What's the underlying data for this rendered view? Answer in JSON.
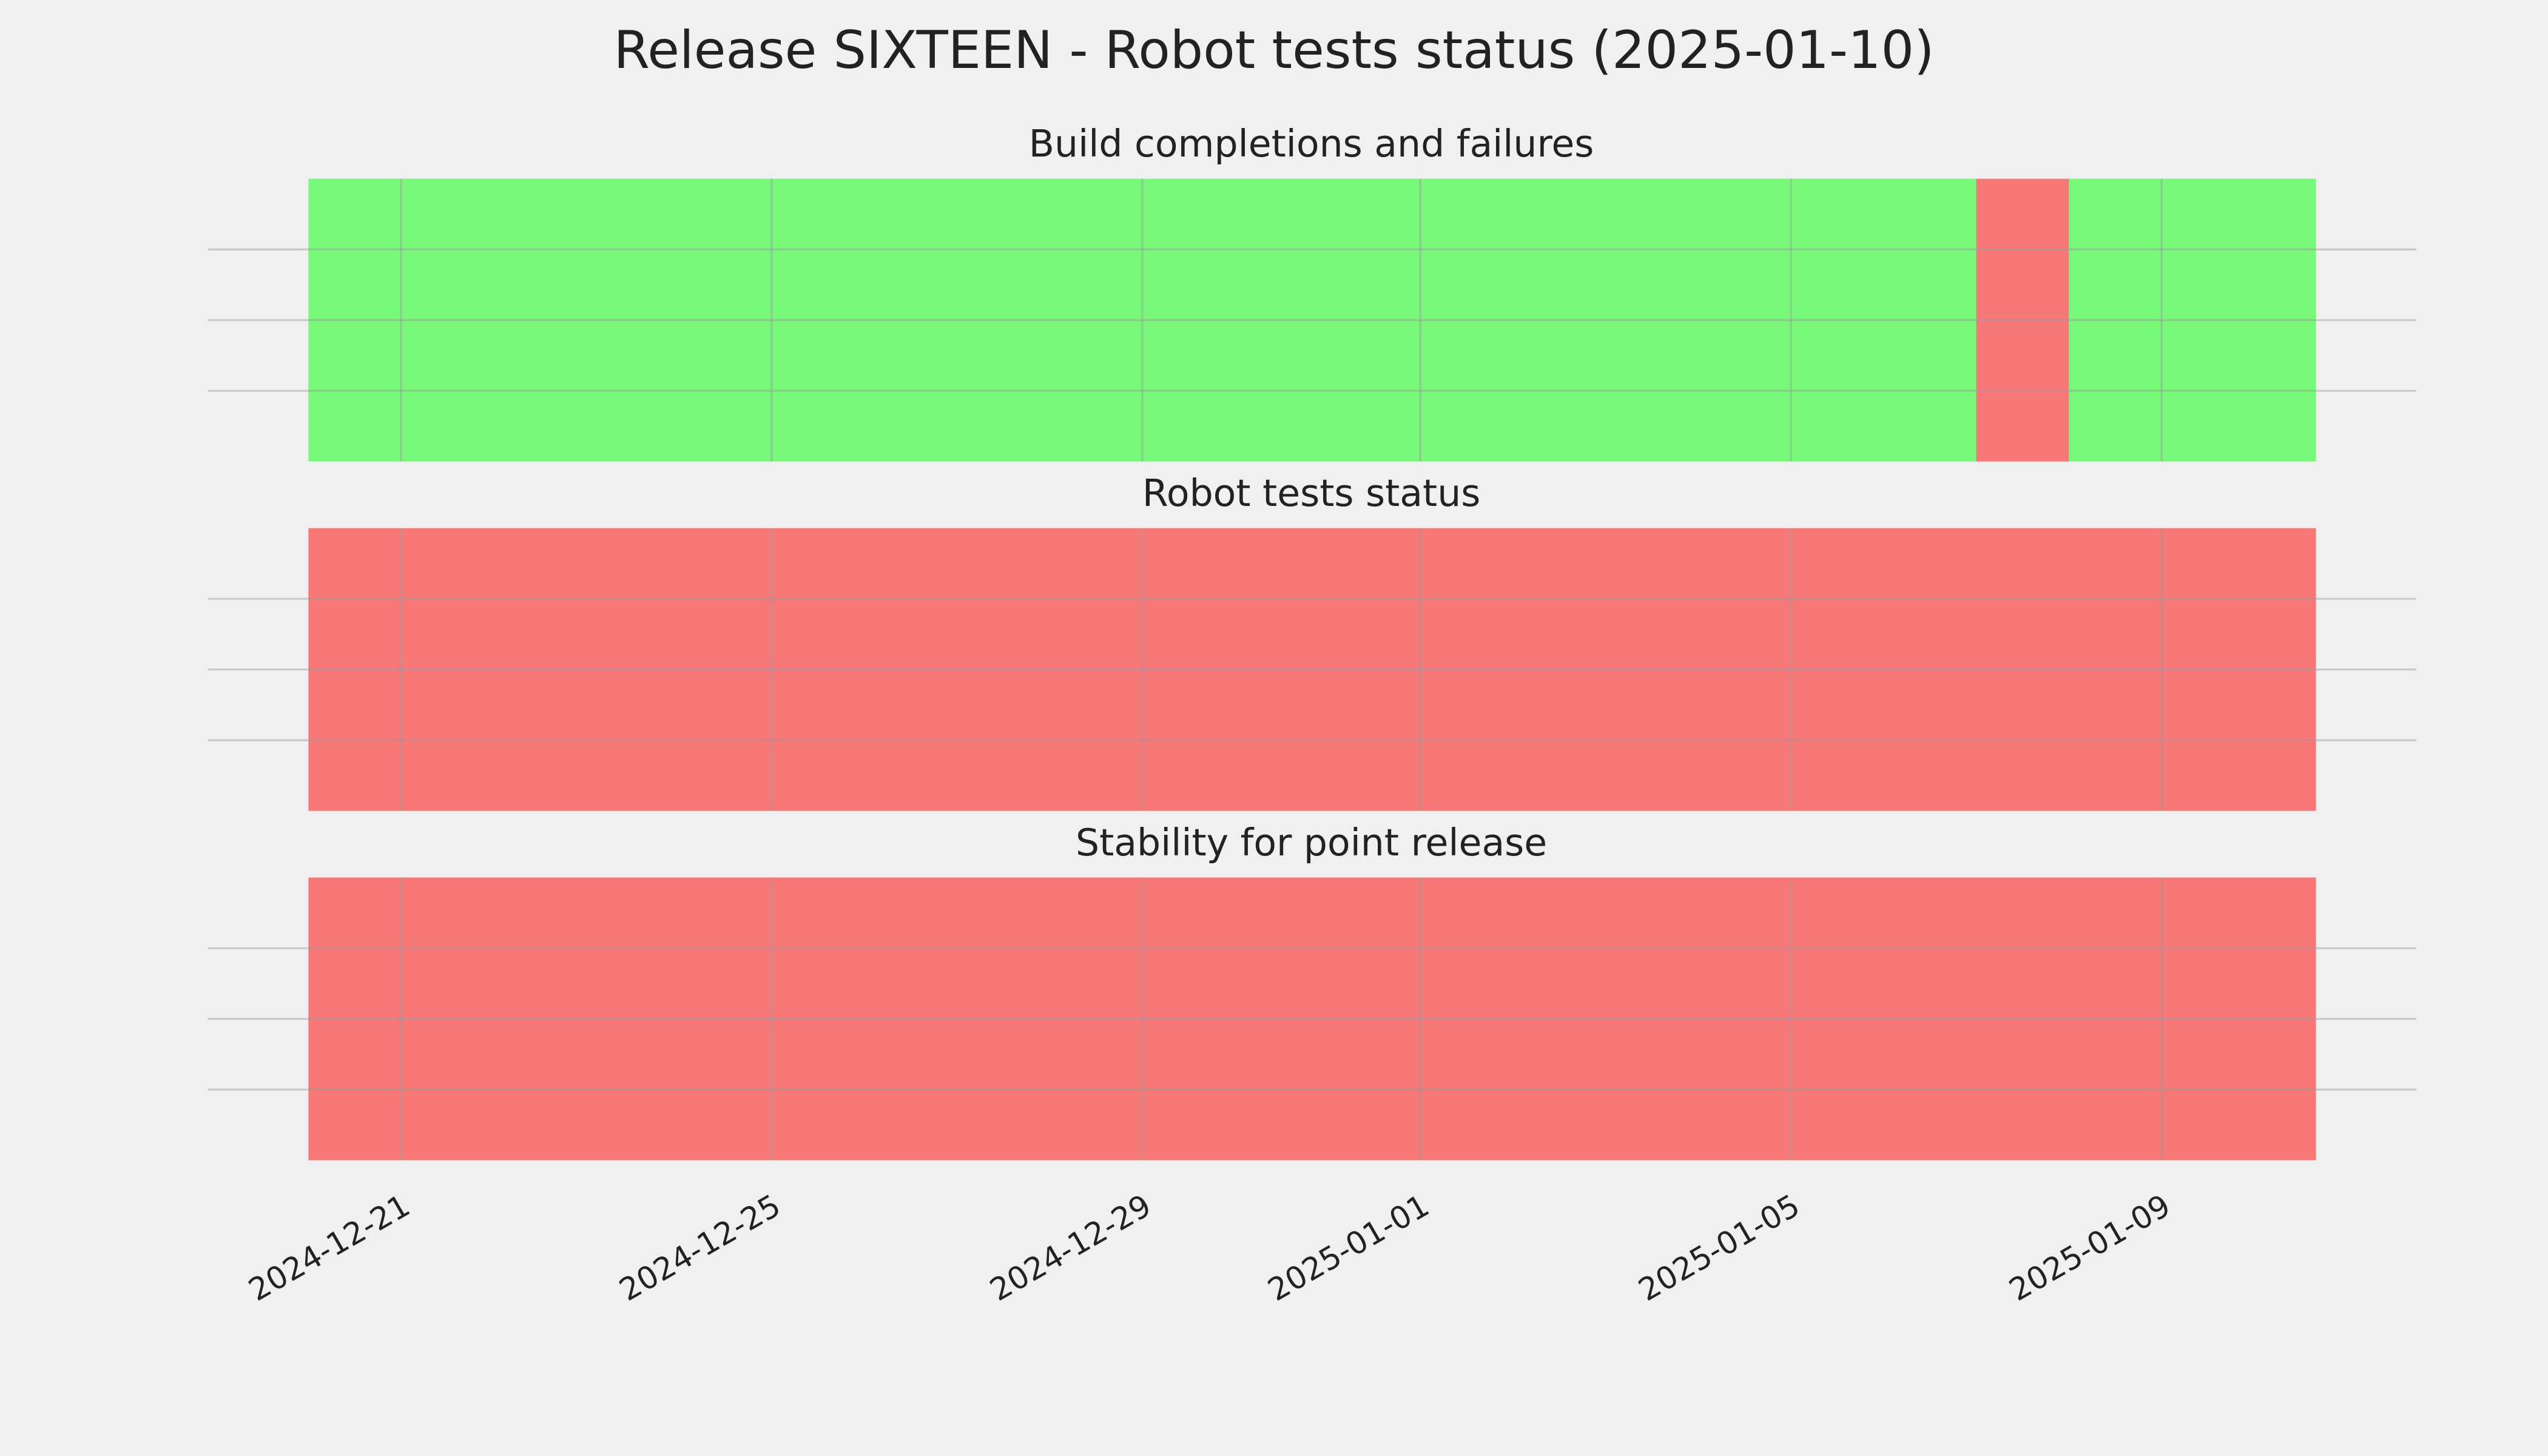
{
  "title": "Release SIXTEEN - Robot tests status (2025-01-10)",
  "chart_data": [
    {
      "type": "timeline",
      "title": "Build completions and failures",
      "x": [
        "2024-12-20",
        "2025-01-07",
        "2025-01-08"
      ],
      "colors": [
        "#00ff00",
        "#ff0000",
        "#00ff00"
      ],
      "xlim": [
        "2024-12-20",
        "2025-01-10T16:00"
      ],
      "xticks": [
        "2024-12-21",
        "2024-12-25",
        "2024-12-29",
        "2025-01-01",
        "2025-01-05",
        "2025-01-09"
      ],
      "ylim": [
        0,
        1
      ],
      "yticks": [
        0.25,
        0.5,
        0.75
      ],
      "grid": true
    },
    {
      "type": "timeline",
      "title": "Robot tests status",
      "x": [
        "2024-12-20"
      ],
      "colors": [
        "#ff0000"
      ],
      "xlim": [
        "2024-12-20",
        "2025-01-10T16:00"
      ],
      "xticks": [
        "2024-12-21",
        "2024-12-25",
        "2024-12-29",
        "2025-01-01",
        "2025-01-05",
        "2025-01-09"
      ],
      "ylim": [
        0,
        1
      ],
      "yticks": [
        0.25,
        0.5,
        0.75
      ],
      "grid": true
    },
    {
      "type": "timeline",
      "title": "Stability for point release",
      "x": [
        "2024-12-20"
      ],
      "colors": [
        "#ff0000"
      ],
      "xlim": [
        "2024-12-20",
        "2025-01-10T16:00"
      ],
      "xticks": [
        "2024-12-21",
        "2024-12-25",
        "2024-12-29",
        "2025-01-01",
        "2025-01-05",
        "2025-01-09"
      ],
      "ylim": [
        0,
        1
      ],
      "yticks": [
        0.25,
        0.5,
        0.75
      ],
      "grid": true
    }
  ]
}
